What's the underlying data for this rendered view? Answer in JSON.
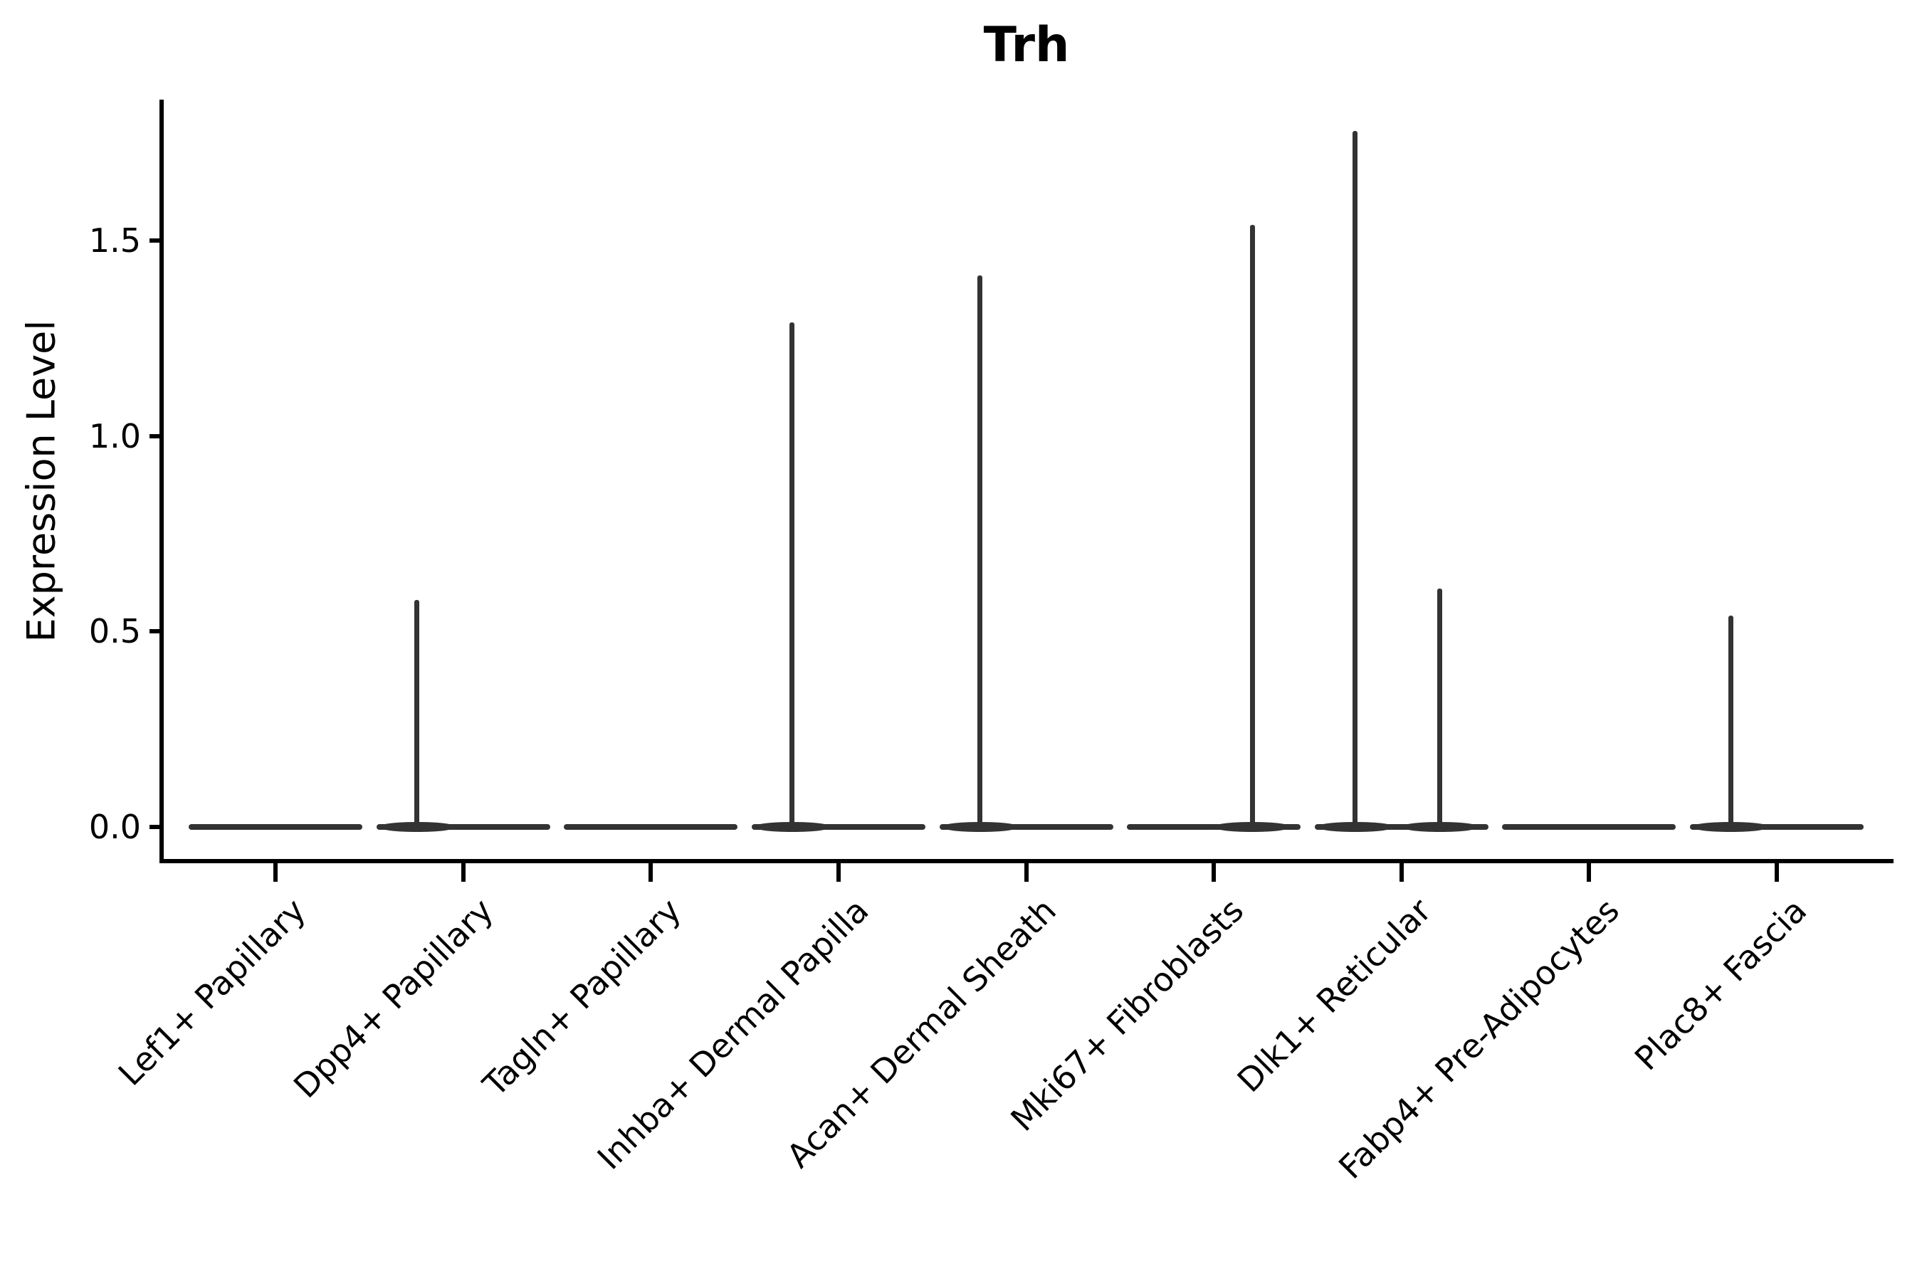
{
  "chart_data": {
    "type": "violin",
    "title": "Trh",
    "ylabel": "Expression Level",
    "xlabel": "",
    "y_ticks": [
      {
        "label": "0.0",
        "value": 0.0
      },
      {
        "label": "0.5",
        "value": 0.5
      },
      {
        "label": "1.0",
        "value": 1.0
      },
      {
        "label": "1.5",
        "value": 1.5
      }
    ],
    "ylim": [
      -0.09,
      1.86
    ],
    "x_tick_rotation_deg": 45,
    "legend": "none",
    "grid": "off",
    "categories": [
      "Lef1+ Papillary",
      "Dpp4+ Papillary",
      "Tagln+ Papillary",
      "Inhba+ Dermal Papilla",
      "Acan+ Dermal Sheath",
      "Mki67+ Fibroblasts",
      "Dlk1+ Reticular",
      "Fabp4+ Pre-Adipocytes",
      "Plac8+ Fascia"
    ],
    "violins": [
      {
        "category": "Lef1+ Papillary",
        "baseline_value": 0.0,
        "spikes": []
      },
      {
        "category": "Dpp4+ Papillary",
        "baseline_value": 0.0,
        "spikes": [
          {
            "side": "left",
            "peak": 0.58
          }
        ]
      },
      {
        "category": "Tagln+ Papillary",
        "baseline_value": 0.0,
        "spikes": []
      },
      {
        "category": "Inhba+ Dermal Papilla",
        "baseline_value": 0.0,
        "spikes": [
          {
            "side": "left",
            "peak": 1.29
          }
        ]
      },
      {
        "category": "Acan+ Dermal Sheath",
        "baseline_value": 0.0,
        "spikes": [
          {
            "side": "left",
            "peak": 1.41
          }
        ]
      },
      {
        "category": "Mki67+ Fibroblasts",
        "baseline_value": 0.0,
        "spikes": [
          {
            "side": "right",
            "peak": 1.54
          }
        ]
      },
      {
        "category": "Dlk1+ Reticular",
        "baseline_value": 0.0,
        "spikes": [
          {
            "side": "left",
            "peak": 1.78
          },
          {
            "side": "right",
            "peak": 0.61
          }
        ]
      },
      {
        "category": "Fabp4+ Pre-Adipocytes",
        "baseline_value": 0.0,
        "spikes": []
      },
      {
        "category": "Plac8+ Fascia",
        "baseline_value": 0.0,
        "spikes": [
          {
            "side": "left",
            "peak": 0.54
          }
        ]
      }
    ],
    "style": {
      "violin_color": "#333333",
      "axis_color": "#000000",
      "background_color": "#ffffff",
      "title_color": "#000000"
    }
  }
}
